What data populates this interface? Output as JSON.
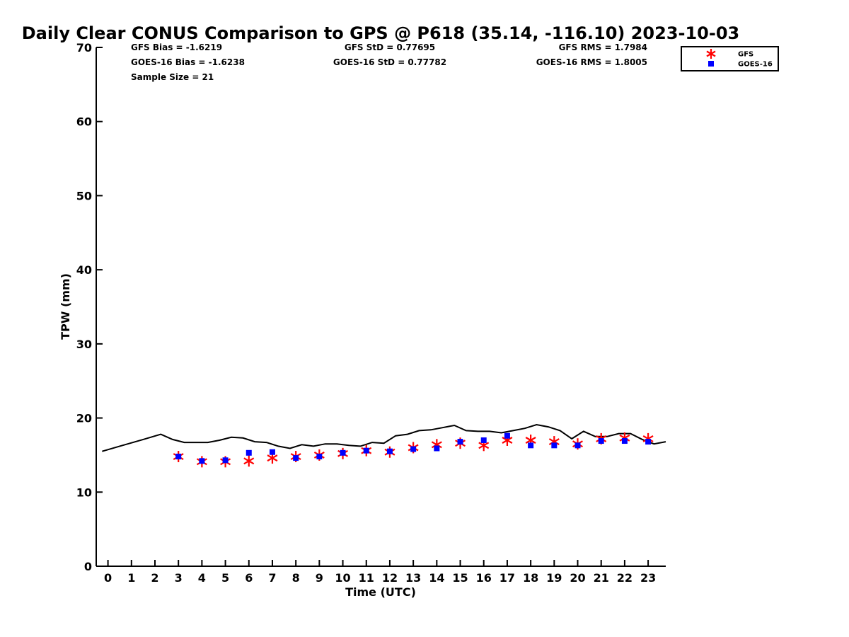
{
  "chart_data": {
    "type": "line",
    "title": "Daily Clear CONUS Comparison to GPS @ P618 (35.14, -116.10) 2023-10-03",
    "xlabel": "Time (UTC)",
    "ylabel": "TPW (mm)",
    "xlim": [
      -0.5,
      23.75
    ],
    "ylim": [
      0,
      70
    ],
    "x_ticks": [
      "0",
      "1",
      "2",
      "3",
      "4",
      "5",
      "6",
      "7",
      "8",
      "9",
      "10",
      "11",
      "12",
      "13",
      "14",
      "15",
      "16",
      "17",
      "18",
      "19",
      "20",
      "21",
      "22",
      "23"
    ],
    "y_ticks": [
      "0",
      "10",
      "20",
      "30",
      "40",
      "50",
      "60",
      "70"
    ],
    "grid": false,
    "legend_position": "top-right",
    "stats": [
      [
        "GFS Bias = -1.6219",
        "GFS StD = 0.77695",
        "GFS RMS = 1.7984"
      ],
      [
        "GOES-16 Bias = -1.6238",
        "GOES-16 StD = 0.77782",
        "GOES-16 RMS = 1.8005"
      ],
      [
        "Sample Size = 21"
      ]
    ],
    "line_series": {
      "color": "#000000",
      "x": [
        -0.25,
        0.5,
        1.5,
        2.25,
        2.75,
        3.25,
        4.25,
        4.75,
        5.25,
        5.75,
        6.25,
        6.75,
        7.25,
        7.75,
        8.25,
        8.75,
        9.25,
        9.75,
        10.25,
        10.75,
        11.25,
        11.75,
        12.25,
        12.75,
        13.25,
        13.75,
        14.25,
        14.75,
        15.25,
        15.75,
        16.25,
        16.75,
        17.25,
        17.75,
        18.25,
        18.75,
        19.25,
        19.75,
        20.25,
        20.75,
        21.25,
        21.75,
        22.25,
        22.75,
        23.25,
        23.75
      ],
      "y": [
        15.5,
        16.2,
        17.1,
        17.8,
        17.1,
        16.7,
        16.7,
        17.0,
        17.4,
        17.3,
        16.8,
        16.7,
        16.2,
        15.9,
        16.4,
        16.2,
        16.5,
        16.5,
        16.3,
        16.2,
        16.7,
        16.6,
        17.6,
        17.8,
        18.3,
        18.4,
        18.7,
        19.0,
        18.3,
        18.2,
        18.2,
        18.0,
        18.3,
        18.6,
        19.1,
        18.8,
        18.3,
        17.2,
        18.2,
        17.5,
        17.5,
        17.9,
        17.9,
        17.1,
        16.5,
        16.8
      ]
    },
    "series": [
      {
        "name": "GFS",
        "color": "#ff0000",
        "marker": "asterisk",
        "x": [
          3,
          4,
          5,
          6,
          7,
          8,
          9,
          10,
          11,
          12,
          13,
          14,
          15,
          16,
          17,
          18,
          19,
          20,
          21,
          22,
          23
        ],
        "y": [
          14.8,
          14.1,
          14.1,
          14.2,
          14.6,
          14.8,
          15.0,
          15.2,
          15.6,
          15.4,
          16.0,
          16.4,
          16.6,
          16.3,
          17.0,
          17.0,
          16.8,
          16.5,
          17.2,
          17.3,
          17.2
        ]
      },
      {
        "name": "GOES-16",
        "color": "#0000ff",
        "marker": "square",
        "x": [
          3,
          4,
          5,
          6,
          7,
          8,
          9,
          10,
          11,
          12,
          13,
          14,
          15,
          16,
          17,
          18,
          19,
          20,
          21,
          22,
          23
        ],
        "y": [
          14.8,
          14.2,
          14.3,
          15.3,
          15.4,
          14.6,
          14.8,
          15.3,
          15.6,
          15.5,
          15.8,
          15.9,
          16.8,
          17.0,
          17.6,
          16.3,
          16.3,
          16.3,
          16.9,
          16.9,
          16.8
        ]
      }
    ]
  }
}
